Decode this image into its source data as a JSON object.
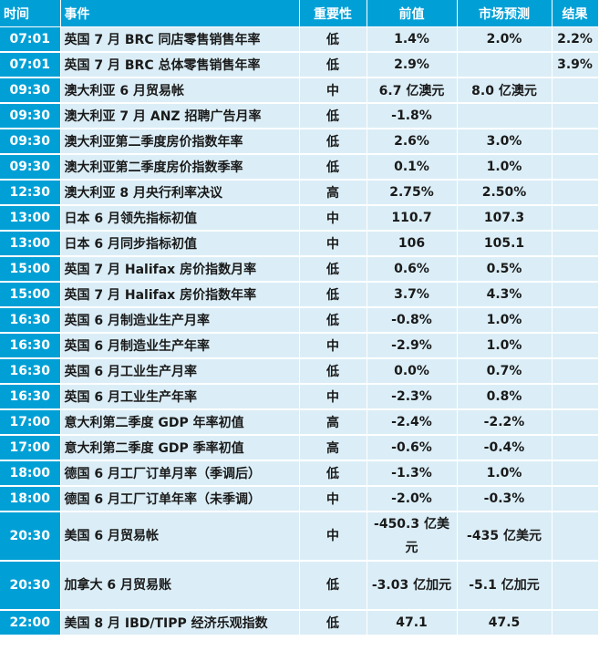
{
  "headers": {
    "time": "时间",
    "event": "事件",
    "importance": "重要性",
    "previous": "前值",
    "forecast": "市场预测",
    "result": "结果"
  },
  "importance_colors": {
    "低": "#1aa31a",
    "中": "#1c2bd0",
    "高": "#e01818"
  },
  "rows": [
    {
      "time": "07:01",
      "event": "英国 7 月 BRC 同店零售销售年率",
      "importance": "低",
      "previous": "1.4%",
      "forecast": "2.0%",
      "result": "2.2%"
    },
    {
      "time": "07:01",
      "event": "英国 7 月 BRC 总体零售销售年率",
      "importance": "低",
      "previous": "2.9%",
      "forecast": "",
      "result": "3.9%"
    },
    {
      "time": "09:30",
      "event": "澳大利亚 6 月贸易帐",
      "importance": "中",
      "previous": "6.7 亿澳元",
      "forecast": "8.0 亿澳元",
      "result": ""
    },
    {
      "time": "09:30",
      "event": "澳大利亚 7 月 ANZ 招聘广告月率",
      "importance": "低",
      "previous": "-1.8%",
      "forecast": "",
      "result": ""
    },
    {
      "time": "09:30",
      "event": "澳大利亚第二季度房价指数年率",
      "importance": "低",
      "previous": "2.6%",
      "forecast": "3.0%",
      "result": ""
    },
    {
      "time": "09:30",
      "event": "澳大利亚第二季度房价指数季率",
      "importance": "低",
      "previous": "0.1%",
      "forecast": "1.0%",
      "result": ""
    },
    {
      "time": "12:30",
      "event": "澳大利亚 8 月央行利率决议",
      "importance": "高",
      "previous": "2.75%",
      "forecast": "2.50%",
      "result": ""
    },
    {
      "time": "13:00",
      "event": "日本 6 月领先指标初值",
      "importance": "中",
      "previous": "110.7",
      "forecast": "107.3",
      "result": ""
    },
    {
      "time": "13:00",
      "event": "日本 6 月同步指标初值",
      "importance": "中",
      "previous": "106",
      "forecast": "105.1",
      "result": ""
    },
    {
      "time": "15:00",
      "event": "英国 7 月 Halifax 房价指数月率",
      "importance": "低",
      "previous": "0.6%",
      "forecast": "0.5%",
      "result": ""
    },
    {
      "time": "15:00",
      "event": "英国 7 月 Halifax 房价指数年率",
      "importance": "低",
      "previous": "3.7%",
      "forecast": "4.3%",
      "result": ""
    },
    {
      "time": "16:30",
      "event": "英国 6 月制造业生产月率",
      "importance": "低",
      "previous": "-0.8%",
      "forecast": "1.0%",
      "result": ""
    },
    {
      "time": "16:30",
      "event": "英国 6 月制造业生产年率",
      "importance": "中",
      "previous": "-2.9%",
      "forecast": "1.0%",
      "result": ""
    },
    {
      "time": "16:30",
      "event": "英国 6 月工业生产月率",
      "importance": "低",
      "previous": "0.0%",
      "forecast": "0.7%",
      "result": ""
    },
    {
      "time": "16:30",
      "event": "英国 6 月工业生产年率",
      "importance": "中",
      "previous": "-2.3%",
      "forecast": "0.8%",
      "result": ""
    },
    {
      "time": "17:00",
      "event": "意大利第二季度 GDP 年率初值",
      "importance": "高",
      "previous": "-2.4%",
      "forecast": "-2.2%",
      "result": ""
    },
    {
      "time": "17:00",
      "event": "意大利第二季度 GDP 季率初值",
      "importance": "高",
      "previous": "-0.6%",
      "forecast": "-0.4%",
      "result": ""
    },
    {
      "time": "18:00",
      "event": "德国 6 月工厂订单月率（季调后）",
      "importance": "低",
      "previous": "-1.3%",
      "forecast": "1.0%",
      "result": ""
    },
    {
      "time": "18:00",
      "event": "德国 6 月工厂订单年率（未季调）",
      "importance": "中",
      "previous": "-2.0%",
      "forecast": "-0.3%",
      "result": ""
    },
    {
      "time": "20:30",
      "event": "美国 6 月贸易帐",
      "importance": "中",
      "previous": "-450.3 亿美元",
      "forecast": "-435 亿美元",
      "result": "",
      "tall": true
    },
    {
      "time": "20:30",
      "event": "加拿大 6 月贸易账",
      "importance": "低",
      "previous": "-3.03 亿加元",
      "forecast": "-5.1 亿加元",
      "result": "",
      "tall": true
    },
    {
      "time": "22:00",
      "event": "美国 8 月 IBD/TIPP 经济乐观指数",
      "importance": "低",
      "previous": "47.1",
      "forecast": "47.5",
      "result": ""
    }
  ]
}
